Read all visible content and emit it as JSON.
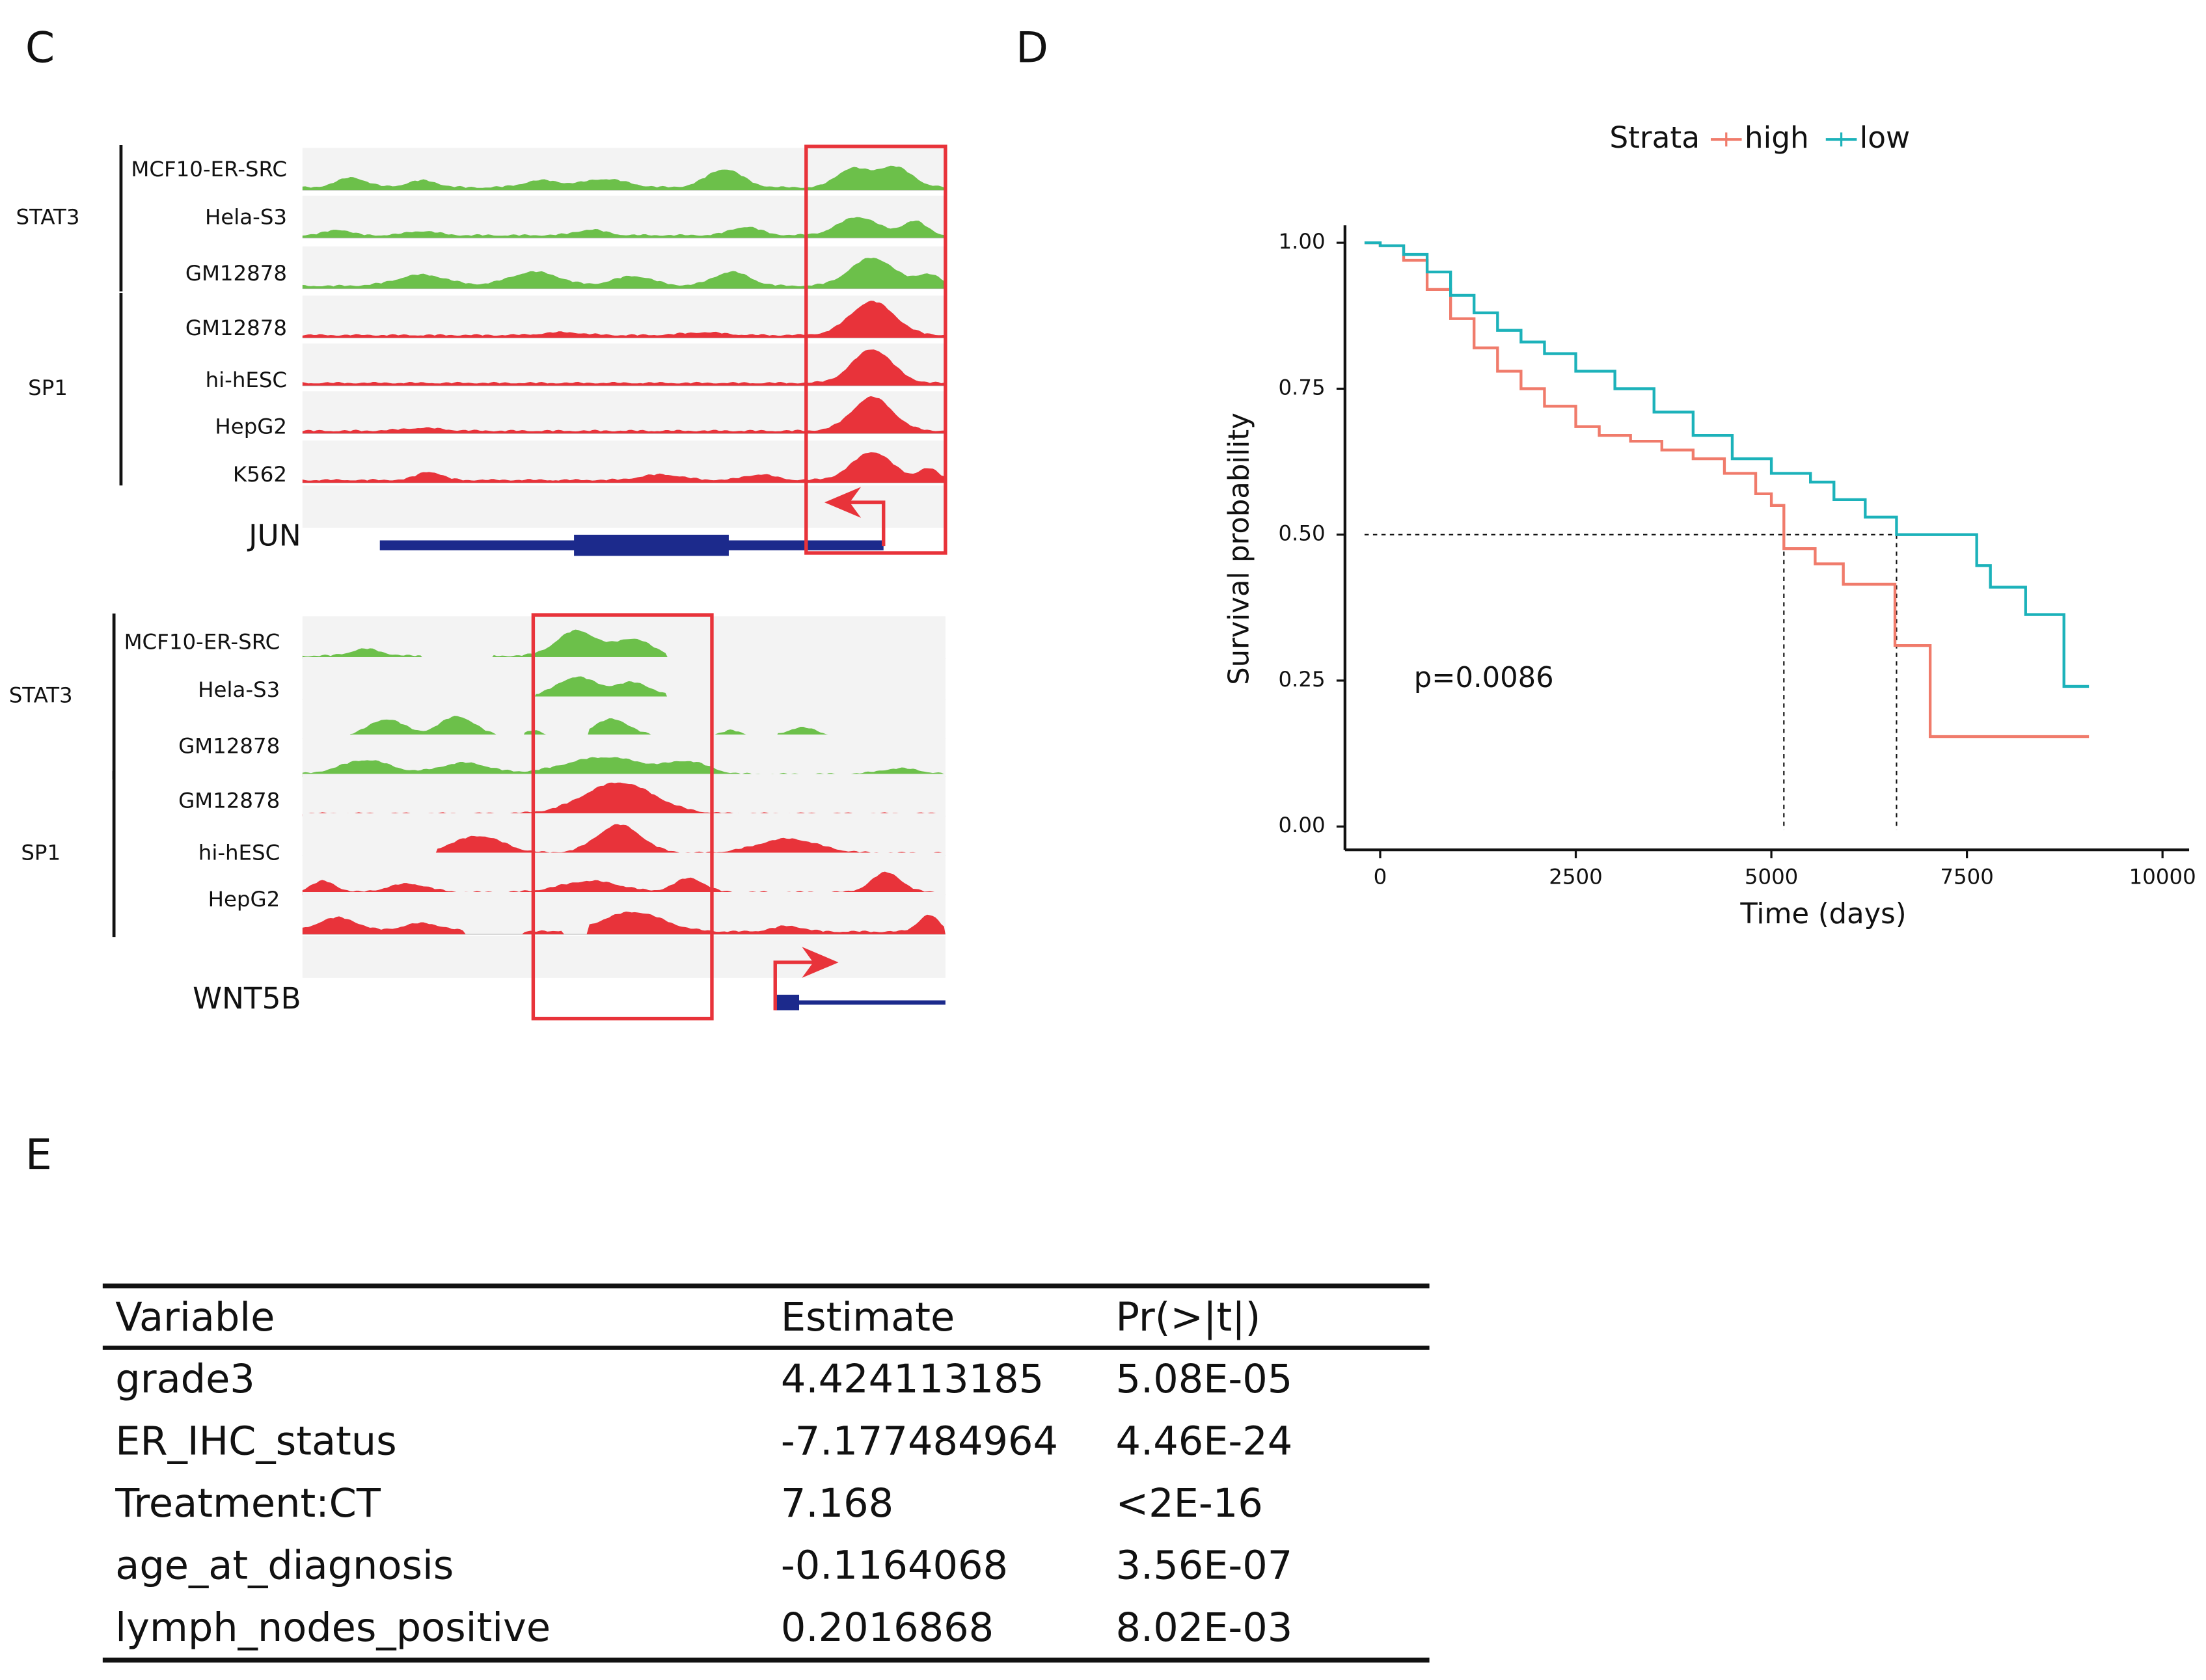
{
  "panels": [
    "C",
    "D",
    "E"
  ],
  "genome_tracks": {
    "blocks": [
      {
        "gene": "JUN",
        "groups": [
          {
            "name": "STAT3",
            "samples": [
              "MCF10-ER-SRC",
              "Hela-S3",
              "GM12878"
            ]
          },
          {
            "name": "SP1",
            "samples": [
              "GM12878",
              "hi-hESC",
              "HepG2",
              "K562"
            ]
          }
        ]
      },
      {
        "gene": "WNT5B",
        "groups": [
          {
            "name": "STAT3",
            "samples": [
              "MCF10-ER-SRC",
              "Hela-S3",
              "GM12878"
            ]
          },
          {
            "name": "SP1",
            "samples": [
              "GM12878",
              "hi-hESC",
              "HepG2"
            ]
          }
        ]
      }
    ]
  },
  "chart_data": {
    "type": "line",
    "step": true,
    "legend_title": "Strata",
    "x_label": "Time (days)",
    "y_label": "Survival probability",
    "annotation": "p=0.0086",
    "xlim": [
      -450,
      10340
    ],
    "ylim": [
      -0.04,
      1.03
    ],
    "xticks": [
      0,
      2500,
      5000,
      7500,
      10000
    ],
    "yticks": [
      {
        "value": 0,
        "label": "0.00"
      },
      {
        "value": 0.25,
        "label": "0.25"
      },
      {
        "value": 0.5,
        "label": "0.50"
      },
      {
        "value": 0.75,
        "label": "0.75"
      },
      {
        "value": 1,
        "label": "1.00"
      }
    ],
    "median_y": 0.5,
    "series": [
      {
        "name": "high",
        "color": "#f07b6b",
        "median": 5160,
        "x": [
          -200,
          0,
          300,
          600,
          900,
          1200,
          1500,
          1800,
          2100,
          2500,
          2800,
          3200,
          3600,
          4000,
          4400,
          4800,
          5000,
          5160,
          5560,
          5920,
          6580,
          7030,
          9060
        ],
        "values": [
          1,
          0.995,
          0.97,
          0.92,
          0.87,
          0.82,
          0.78,
          0.75,
          0.72,
          0.685,
          0.67,
          0.66,
          0.645,
          0.63,
          0.605,
          0.57,
          0.55,
          0.476,
          0.45,
          0.415,
          0.31,
          0.154,
          0.154
        ]
      },
      {
        "name": "low",
        "color": "#1cb2ba",
        "median": 6600,
        "x": [
          -200,
          0,
          300,
          600,
          900,
          1200,
          1500,
          1800,
          2100,
          2500,
          3000,
          3500,
          4000,
          4500,
          5000,
          5500,
          5800,
          6200,
          6600,
          7625,
          7800,
          8250,
          8740,
          9060
        ],
        "values": [
          1,
          0.995,
          0.98,
          0.95,
          0.91,
          0.88,
          0.85,
          0.83,
          0.81,
          0.78,
          0.75,
          0.71,
          0.67,
          0.63,
          0.605,
          0.59,
          0.56,
          0.53,
          0.5,
          0.447,
          0.41,
          0.363,
          0.24,
          0.24
        ]
      }
    ]
  },
  "table": {
    "header": [
      "Variable",
      "Estimate",
      "Pr(>|t|)"
    ],
    "rows": [
      [
        "grade3",
        "4.424113185",
        "5.08E-05"
      ],
      [
        "ER_IHC_status",
        "-7.177484964",
        "4.46E-24"
      ],
      [
        "Treatment:CT",
        "7.168",
        "<2E-16"
      ],
      [
        "age_at_diagnosis",
        "-0.1164068",
        "3.56E-07"
      ],
      [
        "lymph_nodes_positive",
        "0.2016868",
        "8.02E-03"
      ]
    ]
  }
}
